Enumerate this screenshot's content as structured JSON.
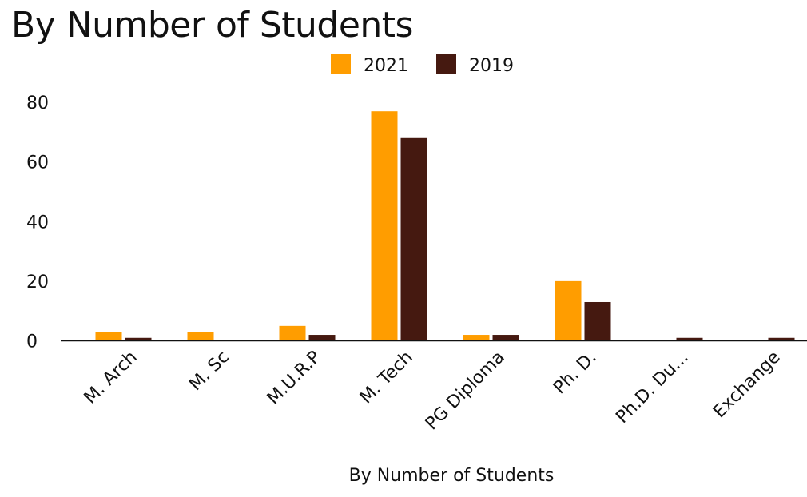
{
  "chart_data": {
    "type": "bar",
    "title": "By Number of Students",
    "xlabel": "By Number of Students",
    "ylabel": "",
    "ylim": [
      0,
      80
    ],
    "yticks": [
      0,
      20,
      40,
      60,
      80
    ],
    "grid": false,
    "legend": "top-center",
    "categories": [
      "M. Arch",
      "M. Sc",
      "M.U.R.P",
      "M. Tech",
      "PG Diploma",
      "Ph. D.",
      "Ph.D. Du...",
      "Exchange"
    ],
    "series": [
      {
        "name": "2021",
        "color": "#ff9d00",
        "values": [
          3,
          3,
          5,
          77,
          2,
          20,
          0,
          0
        ]
      },
      {
        "name": "2019",
        "color": "#451910",
        "values": [
          1,
          0,
          2,
          68,
          2,
          13,
          1,
          1
        ]
      }
    ]
  }
}
